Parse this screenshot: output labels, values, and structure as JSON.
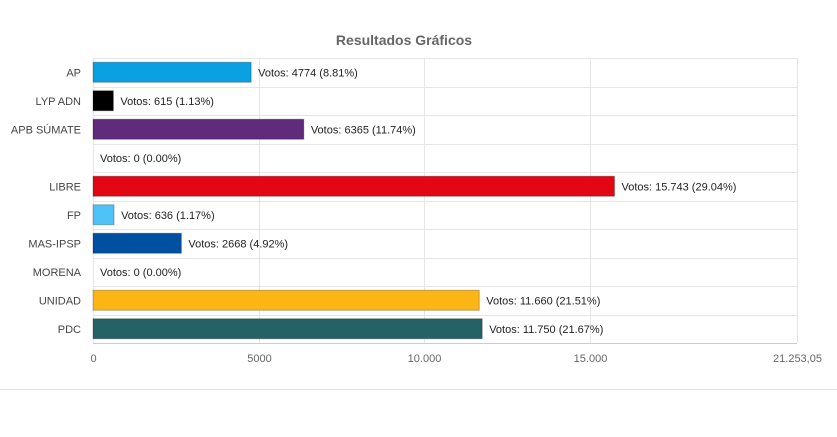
{
  "chart_data": {
    "type": "bar",
    "orientation": "horizontal",
    "title": "Resultados Gráficos",
    "xlabel": "",
    "ylabel": "",
    "xlim": [
      0,
      21253.05
    ],
    "grid": true,
    "legend": "none",
    "x_ticks": [
      0,
      5000,
      10000,
      15000,
      21253.05
    ],
    "x_tick_labels": [
      "0",
      "5000",
      "10.000",
      "15.000",
      "21.253,05"
    ],
    "categories": [
      "AP",
      "LYP ADN",
      "APB SÚMATE",
      "",
      "LIBRE",
      "FP",
      "MAS-IPSP",
      "MORENA",
      "UNIDAD",
      "PDC"
    ],
    "values": [
      4774,
      615,
      6365,
      0,
      15743,
      636,
      2668,
      0,
      11660,
      11750
    ],
    "percentages": [
      8.81,
      1.13,
      11.74,
      0.0,
      29.04,
      1.17,
      4.92,
      0.0,
      21.51,
      21.67
    ],
    "data_labels": [
      "Votos: 4774 (8.81%)",
      "Votos: 615 (1.13%)",
      "Votos: 6365 (11.74%)",
      "Votos: 0 (0.00%)",
      "Votos: 15.743 (29.04%)",
      "Votos: 636 (1.17%)",
      "Votos: 2668 (4.92%)",
      "Votos: 0 (0.00%)",
      "Votos: 11.660 (21.51%)",
      "Votos: 11.750 (21.67%)"
    ],
    "colors": [
      "#0aa0e2",
      "#000000",
      "#5f2b7a",
      "#ffffff",
      "#e30613",
      "#4fc3f7",
      "#0050a0",
      "#ffffff",
      "#fbb515",
      "#256266"
    ]
  }
}
